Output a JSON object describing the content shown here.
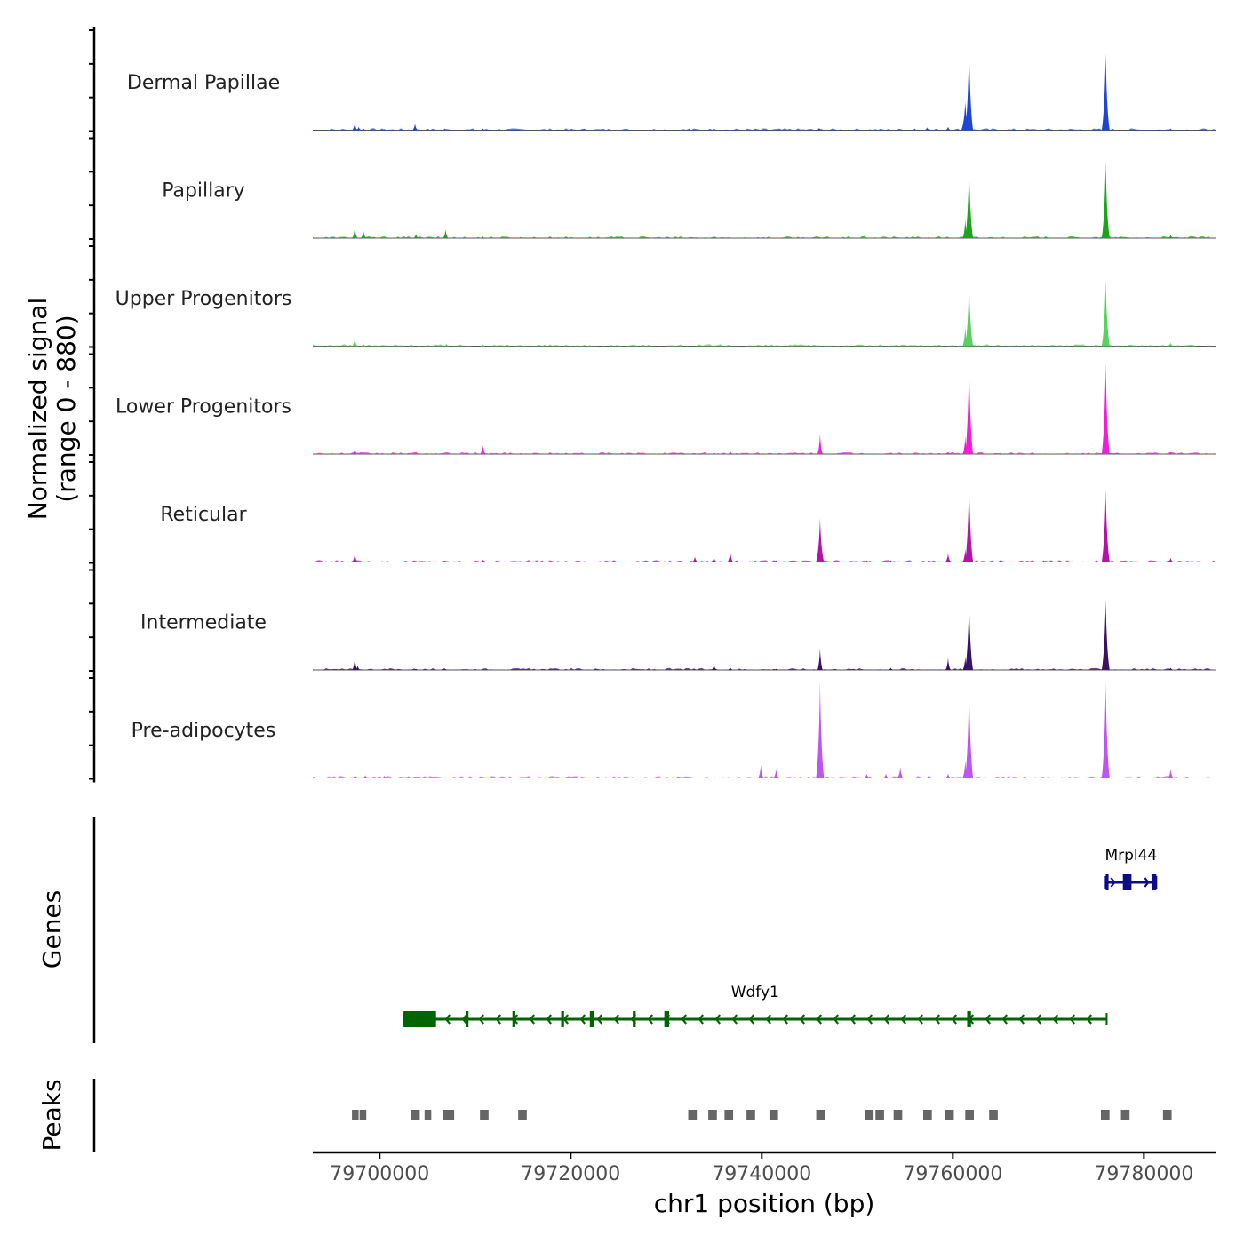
{
  "chart_data": {
    "type": "area",
    "title": "",
    "chromosome": "chr1",
    "xlabel": "chr1 position (bp)",
    "ylabel": "Normalized signal",
    "ylabel_range": "(range 0 - 880)",
    "ylim": [
      0,
      880
    ],
    "xlim": [
      79693000,
      79787500
    ],
    "x_ticks": [
      79700000,
      79720000,
      79740000,
      79760000,
      79780000
    ],
    "x_tick_labels": [
      "79700000",
      "79720000",
      "79740000",
      "79760000",
      "79780000"
    ],
    "series": [
      {
        "name": "Dermal Papillae",
        "color": "#1f45d6",
        "peaks": [
          [
            79697400,
            70
          ],
          [
            79697800,
            30
          ],
          [
            79698300,
            15
          ],
          [
            79700500,
            10
          ],
          [
            79703700,
            60
          ],
          [
            79706800,
            15
          ],
          [
            79710800,
            15
          ],
          [
            79732400,
            15
          ],
          [
            79735000,
            20
          ],
          [
            79746000,
            20
          ],
          [
            79756000,
            15
          ],
          [
            79757300,
            25
          ],
          [
            79759500,
            30
          ],
          [
            79761300,
            260
          ],
          [
            79761700,
            770
          ],
          [
            79776000,
            700
          ],
          [
            79782800,
            15
          ]
        ]
      },
      {
        "name": "Papillary",
        "color": "#1aa51a",
        "peaks": [
          [
            79697400,
            100
          ],
          [
            79698300,
            70
          ],
          [
            79703800,
            40
          ],
          [
            79706900,
            80
          ],
          [
            79710800,
            15
          ],
          [
            79735000,
            20
          ],
          [
            79761300,
            170
          ],
          [
            79761700,
            660
          ],
          [
            79776000,
            700
          ],
          [
            79782800,
            30
          ]
        ]
      },
      {
        "name": "Upper Progenitors",
        "color": "#57d25f",
        "peaks": [
          [
            79697400,
            70
          ],
          [
            79698300,
            20
          ],
          [
            79707000,
            20
          ],
          [
            79710800,
            15
          ],
          [
            79735000,
            10
          ],
          [
            79761300,
            180
          ],
          [
            79761700,
            590
          ],
          [
            79776000,
            610
          ],
          [
            79782800,
            30
          ]
        ]
      },
      {
        "name": "Lower Progenitors",
        "color": "#f21cdb",
        "peaks": [
          [
            79697400,
            45
          ],
          [
            79703800,
            20
          ],
          [
            79710800,
            80
          ],
          [
            79735000,
            15
          ],
          [
            79736700,
            25
          ],
          [
            79746100,
            190
          ],
          [
            79759500,
            20
          ],
          [
            79761300,
            160
          ],
          [
            79761700,
            850
          ],
          [
            79776000,
            840
          ],
          [
            79782800,
            20
          ]
        ]
      },
      {
        "name": "Reticular",
        "color": "#b312ad",
        "peaks": [
          [
            79697400,
            80
          ],
          [
            79703800,
            10
          ],
          [
            79706800,
            10
          ],
          [
            79710800,
            20
          ],
          [
            79733000,
            50
          ],
          [
            79735000,
            45
          ],
          [
            79736700,
            100
          ],
          [
            79741500,
            15
          ],
          [
            79746100,
            400
          ],
          [
            79751000,
            15
          ],
          [
            79753500,
            15
          ],
          [
            79757500,
            20
          ],
          [
            79759500,
            80
          ],
          [
            79761300,
            120
          ],
          [
            79761700,
            740
          ],
          [
            79765000,
            20
          ],
          [
            79769500,
            15
          ],
          [
            79776000,
            660
          ],
          [
            79782800,
            40
          ]
        ]
      },
      {
        "name": "Intermediate",
        "color": "#3a1163",
        "peaks": [
          [
            79697400,
            110
          ],
          [
            79697700,
            40
          ],
          [
            79703800,
            10
          ],
          [
            79706800,
            15
          ],
          [
            79735000,
            50
          ],
          [
            79736700,
            25
          ],
          [
            79741500,
            10
          ],
          [
            79746100,
            200
          ],
          [
            79753500,
            20
          ],
          [
            79759500,
            110
          ],
          [
            79761300,
            120
          ],
          [
            79761700,
            640
          ],
          [
            79776000,
            640
          ],
          [
            79782800,
            20
          ]
        ]
      },
      {
        "name": "Pre-adipocytes",
        "color": "#bf54f2",
        "peaks": [
          [
            79697400,
            20
          ],
          [
            79698500,
            25
          ],
          [
            79700500,
            20
          ],
          [
            79739900,
            120
          ],
          [
            79741500,
            80
          ],
          [
            79746100,
            880
          ],
          [
            79751000,
            40
          ],
          [
            79753000,
            40
          ],
          [
            79754500,
            100
          ],
          [
            79757500,
            30
          ],
          [
            79759500,
            40
          ],
          [
            79761300,
            160
          ],
          [
            79761700,
            850
          ],
          [
            79776000,
            870
          ],
          [
            79782800,
            80
          ]
        ]
      }
    ],
    "genes_track": {
      "label": "Genes",
      "genes": [
        {
          "name": "Mrpl44",
          "start": 79776000,
          "end": 79781300,
          "strand": "+",
          "color": "#0d0d8c",
          "exons": [
            [
              79776000,
              79776300
            ],
            [
              79777800,
              79778700
            ],
            [
              79780800,
              79781300
            ]
          ]
        },
        {
          "name": "Wdfy1",
          "start": 79702500,
          "end": 79776100,
          "strand": "-",
          "color": "#006400",
          "exons": [
            [
              79702500,
              79705900
            ],
            [
              79709000,
              79709300
            ],
            [
              79713900,
              79714200
            ],
            [
              79719000,
              79719300
            ],
            [
              79722000,
              79722400
            ],
            [
              79726500,
              79726800
            ],
            [
              79729800,
              79730300
            ],
            [
              79761500,
              79761900
            ]
          ]
        }
      ]
    },
    "peaks_track": {
      "label": "Peaks",
      "color": "#666666",
      "regions": [
        [
          79697100,
          79697800
        ],
        [
          79697900,
          79698600
        ],
        [
          79703300,
          79704200
        ],
        [
          79704700,
          79705400
        ],
        [
          79706600,
          79707800
        ],
        [
          79710500,
          79711400
        ],
        [
          79714500,
          79715400
        ],
        [
          79732300,
          79733200
        ],
        [
          79734400,
          79735300
        ],
        [
          79736100,
          79737000
        ],
        [
          79738400,
          79739300
        ],
        [
          79740800,
          79741700
        ],
        [
          79745700,
          79746600
        ],
        [
          79750800,
          79751700
        ],
        [
          79751900,
          79752800
        ],
        [
          79753800,
          79754700
        ],
        [
          79756900,
          79757800
        ],
        [
          79759200,
          79760100
        ],
        [
          79761300,
          79762200
        ],
        [
          79763800,
          79764700
        ],
        [
          79775500,
          79776400
        ],
        [
          79777600,
          79778500
        ],
        [
          79782000,
          79782900
        ]
      ]
    }
  }
}
